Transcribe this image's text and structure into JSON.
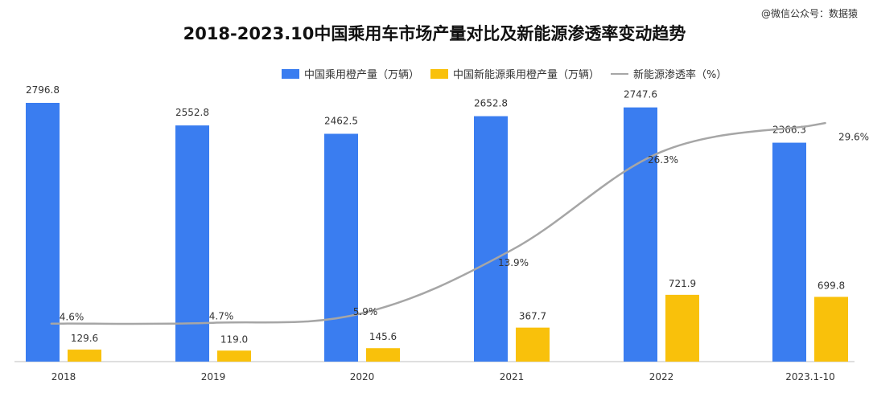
{
  "watermark": "@微信公众号：数据猿",
  "chart_data": {
    "type": "bar",
    "title": "2018-2023.10中国乘用车市场产量对比及新能源渗透率变动趋势",
    "categories": [
      "2018",
      "2019",
      "2020",
      "2021",
      "2022",
      "2023.1-10"
    ],
    "series": [
      {
        "name": "中国乘用橙产量（万辆）",
        "type": "bar",
        "color": "#3a7df0",
        "values": [
          2796.8,
          2552.8,
          2462.5,
          2652.8,
          2747.6,
          2366.3
        ],
        "labels": [
          "2796.8",
          "2552.8",
          "2462.5",
          "2652.8",
          "2747.6",
          "2366.3"
        ]
      },
      {
        "name": "中国新能源乘用橙产量（万辆）",
        "type": "bar",
        "color": "#f9c10b",
        "values": [
          129.6,
          119.0,
          145.6,
          367.7,
          721.9,
          699.8
        ],
        "labels": [
          "129.6",
          "119.0",
          "145.6",
          "367.7",
          "721.9",
          "699.8"
        ]
      },
      {
        "name": "新能源渗透率（%）",
        "type": "line",
        "color": "#a6a6a6",
        "values": [
          4.6,
          4.7,
          5.9,
          13.9,
          26.3,
          29.6
        ],
        "labels": [
          "4.6%",
          "4.7%",
          "5.9%",
          "13.9%",
          "26.3%",
          "29.6%"
        ]
      }
    ],
    "ylim_bar": [
      0,
      2900
    ],
    "ylim_line": [
      0,
      32
    ],
    "legend_position": "top",
    "grid": false
  }
}
